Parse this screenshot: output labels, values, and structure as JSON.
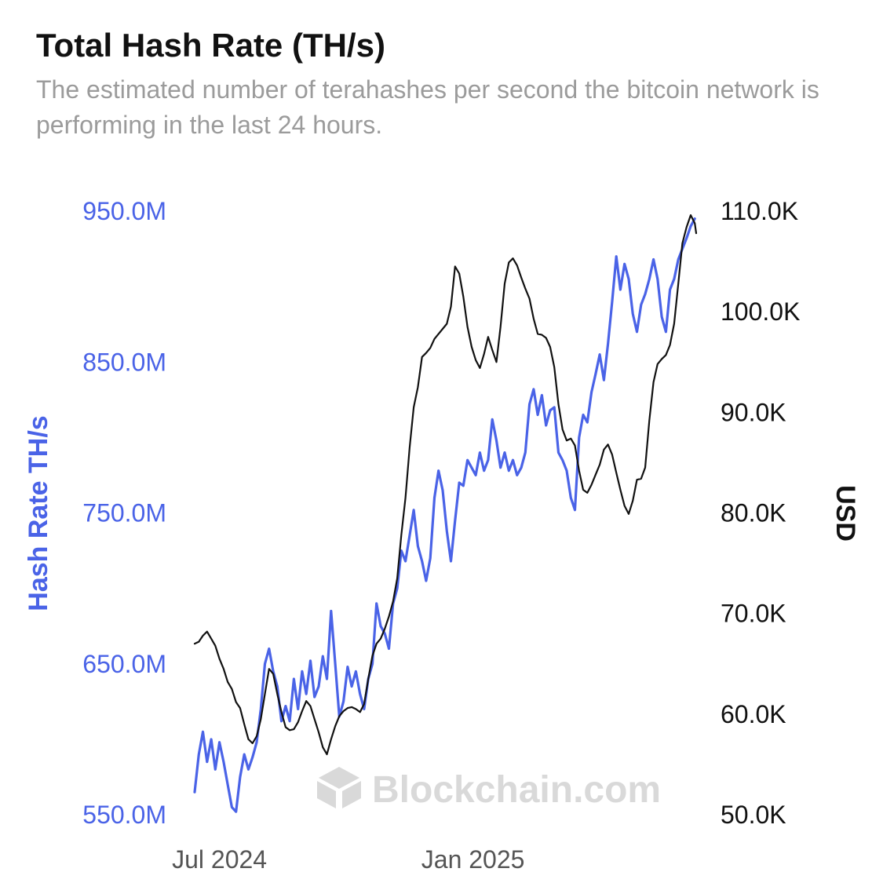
{
  "header": {
    "title": "Total Hash Rate (TH/s)",
    "subtitle": "The estimated number of terahashes per second the bitcoin network is performing in the last 24 hours."
  },
  "watermark": {
    "text": "Blockchain.com",
    "icon": "blockchain-cube-logo-icon",
    "color": "#d9d9d9"
  },
  "colors": {
    "hash_rate": "#4a63e7",
    "price": "#111111",
    "left_axis_text": "#4a63e7",
    "right_axis_text": "#111111",
    "x_axis_text": "#555555"
  },
  "chart_data": {
    "type": "line",
    "grid": false,
    "legend": "none",
    "x_axis": {
      "type": "time",
      "range": [
        "2024-06-13",
        "2025-06-12"
      ],
      "ticks": [
        {
          "label": "Jul 2024",
          "value": "2024-07-01"
        },
        {
          "label": "Jan 2025",
          "value": "2025-01-01"
        }
      ]
    },
    "y_left": {
      "label": "Hash Rate TH/s",
      "range": [
        550000000,
        950000000
      ],
      "ticks": [
        {
          "label": "550.0M",
          "value": 550000000
        },
        {
          "label": "650.0M",
          "value": 650000000
        },
        {
          "label": "750.0M",
          "value": 750000000
        },
        {
          "label": "850.0M",
          "value": 850000000
        },
        {
          "label": "950.0M",
          "value": 950000000
        }
      ]
    },
    "y_right": {
      "label": "USD",
      "range": [
        50000,
        110000
      ],
      "ticks": [
        {
          "label": "50.0K",
          "value": 50000
        },
        {
          "label": "60.0K",
          "value": 60000
        },
        {
          "label": "70.0K",
          "value": 70000
        },
        {
          "label": "80.0K",
          "value": 80000
        },
        {
          "label": "90.0K",
          "value": 90000
        },
        {
          "label": "100.0K",
          "value": 100000
        },
        {
          "label": "110.0K",
          "value": 110000
        }
      ]
    },
    "series": [
      {
        "axis": "left",
        "color": "#4a63e7",
        "points": [
          [
            "2024-06-13",
            565000000
          ],
          [
            "2024-06-16",
            590000000
          ],
          [
            "2024-06-19",
            605000000
          ],
          [
            "2024-06-22",
            585000000
          ],
          [
            "2024-06-25",
            600000000
          ],
          [
            "2024-06-28",
            580000000
          ],
          [
            "2024-07-01",
            598000000
          ],
          [
            "2024-07-04",
            585000000
          ],
          [
            "2024-07-07",
            570000000
          ],
          [
            "2024-07-10",
            555000000
          ],
          [
            "2024-07-13",
            552000000
          ],
          [
            "2024-07-16",
            575000000
          ],
          [
            "2024-07-19",
            590000000
          ],
          [
            "2024-07-22",
            580000000
          ],
          [
            "2024-07-25",
            588000000
          ],
          [
            "2024-07-28",
            598000000
          ],
          [
            "2024-07-31",
            620000000
          ],
          [
            "2024-08-03",
            650000000
          ],
          [
            "2024-08-06",
            660000000
          ],
          [
            "2024-08-09",
            645000000
          ],
          [
            "2024-08-12",
            635000000
          ],
          [
            "2024-08-15",
            612000000
          ],
          [
            "2024-08-18",
            622000000
          ],
          [
            "2024-08-21",
            612000000
          ],
          [
            "2024-08-24",
            640000000
          ],
          [
            "2024-08-27",
            620000000
          ],
          [
            "2024-08-30",
            645000000
          ],
          [
            "2024-09-02",
            630000000
          ],
          [
            "2024-09-05",
            652000000
          ],
          [
            "2024-09-08",
            628000000
          ],
          [
            "2024-09-11",
            635000000
          ],
          [
            "2024-09-14",
            655000000
          ],
          [
            "2024-09-17",
            640000000
          ],
          [
            "2024-09-20",
            685000000
          ],
          [
            "2024-09-23",
            650000000
          ],
          [
            "2024-09-26",
            615000000
          ],
          [
            "2024-09-29",
            625000000
          ],
          [
            "2024-10-02",
            648000000
          ],
          [
            "2024-10-05",
            635000000
          ],
          [
            "2024-10-08",
            645000000
          ],
          [
            "2024-10-11",
            630000000
          ],
          [
            "2024-10-14",
            620000000
          ],
          [
            "2024-10-17",
            640000000
          ],
          [
            "2024-10-20",
            650000000
          ],
          [
            "2024-10-23",
            690000000
          ],
          [
            "2024-10-26",
            675000000
          ],
          [
            "2024-10-29",
            670000000
          ],
          [
            "2024-11-01",
            660000000
          ],
          [
            "2024-11-04",
            690000000
          ],
          [
            "2024-11-07",
            700000000
          ],
          [
            "2024-11-10",
            725000000
          ],
          [
            "2024-11-13",
            718000000
          ],
          [
            "2024-11-16",
            735000000
          ],
          [
            "2024-11-19",
            752000000
          ],
          [
            "2024-11-22",
            728000000
          ],
          [
            "2024-11-25",
            718000000
          ],
          [
            "2024-11-28",
            705000000
          ],
          [
            "2024-12-01",
            720000000
          ],
          [
            "2024-12-04",
            760000000
          ],
          [
            "2024-12-07",
            778000000
          ],
          [
            "2024-12-10",
            765000000
          ],
          [
            "2024-12-13",
            738000000
          ],
          [
            "2024-12-16",
            718000000
          ],
          [
            "2024-12-19",
            745000000
          ],
          [
            "2024-12-22",
            770000000
          ],
          [
            "2024-12-25",
            768000000
          ],
          [
            "2024-12-28",
            785000000
          ],
          [
            "2024-12-31",
            780000000
          ],
          [
            "2025-01-03",
            775000000
          ],
          [
            "2025-01-06",
            790000000
          ],
          [
            "2025-01-09",
            778000000
          ],
          [
            "2025-01-12",
            785000000
          ],
          [
            "2025-01-15",
            812000000
          ],
          [
            "2025-01-18",
            798000000
          ],
          [
            "2025-01-21",
            780000000
          ],
          [
            "2025-01-24",
            790000000
          ],
          [
            "2025-01-27",
            778000000
          ],
          [
            "2025-01-30",
            785000000
          ],
          [
            "2025-02-02",
            775000000
          ],
          [
            "2025-02-05",
            780000000
          ],
          [
            "2025-02-08",
            790000000
          ],
          [
            "2025-02-11",
            822000000
          ],
          [
            "2025-02-14",
            832000000
          ],
          [
            "2025-02-17",
            815000000
          ],
          [
            "2025-02-20",
            828000000
          ],
          [
            "2025-02-23",
            808000000
          ],
          [
            "2025-02-26",
            818000000
          ],
          [
            "2025-03-01",
            820000000
          ],
          [
            "2025-03-04",
            790000000
          ],
          [
            "2025-03-07",
            785000000
          ],
          [
            "2025-03-10",
            778000000
          ],
          [
            "2025-03-13",
            760000000
          ],
          [
            "2025-03-16",
            752000000
          ],
          [
            "2025-03-19",
            800000000
          ],
          [
            "2025-03-22",
            815000000
          ],
          [
            "2025-03-25",
            810000000
          ],
          [
            "2025-03-28",
            830000000
          ],
          [
            "2025-03-31",
            842000000
          ],
          [
            "2025-04-03",
            855000000
          ],
          [
            "2025-04-06",
            838000000
          ],
          [
            "2025-04-09",
            862000000
          ],
          [
            "2025-04-12",
            890000000
          ],
          [
            "2025-04-15",
            920000000
          ],
          [
            "2025-04-18",
            898000000
          ],
          [
            "2025-04-21",
            915000000
          ],
          [
            "2025-04-24",
            905000000
          ],
          [
            "2025-04-27",
            882000000
          ],
          [
            "2025-04-30",
            870000000
          ],
          [
            "2025-05-03",
            888000000
          ],
          [
            "2025-05-06",
            895000000
          ],
          [
            "2025-05-09",
            905000000
          ],
          [
            "2025-05-12",
            918000000
          ],
          [
            "2025-05-15",
            905000000
          ],
          [
            "2025-05-18",
            880000000
          ],
          [
            "2025-05-21",
            870000000
          ],
          [
            "2025-05-24",
            898000000
          ],
          [
            "2025-05-27",
            905000000
          ],
          [
            "2025-05-30",
            918000000
          ],
          [
            "2025-06-02",
            925000000
          ],
          [
            "2025-06-05",
            932000000
          ],
          [
            "2025-06-08",
            940000000
          ],
          [
            "2025-06-11",
            945000000
          ]
        ]
      },
      {
        "axis": "right",
        "color": "#111111",
        "points": [
          [
            "2024-06-13",
            67000
          ],
          [
            "2024-06-16",
            67200
          ],
          [
            "2024-06-19",
            67800
          ],
          [
            "2024-06-22",
            68200
          ],
          [
            "2024-06-25",
            67500
          ],
          [
            "2024-06-28",
            66800
          ],
          [
            "2024-07-01",
            65500
          ],
          [
            "2024-07-04",
            64500
          ],
          [
            "2024-07-07",
            63200
          ],
          [
            "2024-07-10",
            62500
          ],
          [
            "2024-07-13",
            61200
          ],
          [
            "2024-07-16",
            60600
          ],
          [
            "2024-07-19",
            59000
          ],
          [
            "2024-07-22",
            57500
          ],
          [
            "2024-07-25",
            57100
          ],
          [
            "2024-07-28",
            57800
          ],
          [
            "2024-07-31",
            59500
          ],
          [
            "2024-08-03",
            62000
          ],
          [
            "2024-08-06",
            64500
          ],
          [
            "2024-08-09",
            64000
          ],
          [
            "2024-08-12",
            62000
          ],
          [
            "2024-08-15",
            60200
          ],
          [
            "2024-08-18",
            58700
          ],
          [
            "2024-08-21",
            58400
          ],
          [
            "2024-08-24",
            58500
          ],
          [
            "2024-08-27",
            59200
          ],
          [
            "2024-08-30",
            60300
          ],
          [
            "2024-09-02",
            61300
          ],
          [
            "2024-09-05",
            60800
          ],
          [
            "2024-09-08",
            59500
          ],
          [
            "2024-09-11",
            58200
          ],
          [
            "2024-09-14",
            56700
          ],
          [
            "2024-09-17",
            56000
          ],
          [
            "2024-09-20",
            57500
          ],
          [
            "2024-09-23",
            58800
          ],
          [
            "2024-09-26",
            59800
          ],
          [
            "2024-09-29",
            60300
          ],
          [
            "2024-10-02",
            60600
          ],
          [
            "2024-10-05",
            60700
          ],
          [
            "2024-10-08",
            60500
          ],
          [
            "2024-10-11",
            60200
          ],
          [
            "2024-10-14",
            61000
          ],
          [
            "2024-10-17",
            63500
          ],
          [
            "2024-10-20",
            65800
          ],
          [
            "2024-10-23",
            67000
          ],
          [
            "2024-10-26",
            67500
          ],
          [
            "2024-10-29",
            68500
          ],
          [
            "2024-11-01",
            69700
          ],
          [
            "2024-11-04",
            71200
          ],
          [
            "2024-11-07",
            73500
          ],
          [
            "2024-11-10",
            77800
          ],
          [
            "2024-11-13",
            81500
          ],
          [
            "2024-11-16",
            86500
          ],
          [
            "2024-11-19",
            90500
          ],
          [
            "2024-11-22",
            92500
          ],
          [
            "2024-11-25",
            95500
          ],
          [
            "2024-11-28",
            95900
          ],
          [
            "2024-12-01",
            96400
          ],
          [
            "2024-12-04",
            97300
          ],
          [
            "2024-12-07",
            97800
          ],
          [
            "2024-12-10",
            98300
          ],
          [
            "2024-12-13",
            98800
          ],
          [
            "2024-12-16",
            100500
          ],
          [
            "2024-12-19",
            104500
          ],
          [
            "2024-12-22",
            103800
          ],
          [
            "2024-12-25",
            101500
          ],
          [
            "2024-12-28",
            98500
          ],
          [
            "2024-12-31",
            96500
          ],
          [
            "2025-01-03",
            95200
          ],
          [
            "2025-01-06",
            94400
          ],
          [
            "2025-01-09",
            95800
          ],
          [
            "2025-01-12",
            97500
          ],
          [
            "2025-01-15",
            96200
          ],
          [
            "2025-01-18",
            95000
          ],
          [
            "2025-01-21",
            98500
          ],
          [
            "2025-01-24",
            102800
          ],
          [
            "2025-01-27",
            104900
          ],
          [
            "2025-01-30",
            105300
          ],
          [
            "2025-02-02",
            104600
          ],
          [
            "2025-02-05",
            103400
          ],
          [
            "2025-02-08",
            102300
          ],
          [
            "2025-02-11",
            101300
          ],
          [
            "2025-02-14",
            99300
          ],
          [
            "2025-02-17",
            97800
          ],
          [
            "2025-02-20",
            97700
          ],
          [
            "2025-02-23",
            97400
          ],
          [
            "2025-02-26",
            96500
          ],
          [
            "2025-03-01",
            94500
          ],
          [
            "2025-03-04",
            90800
          ],
          [
            "2025-03-07",
            88300
          ],
          [
            "2025-03-10",
            87200
          ],
          [
            "2025-03-13",
            87400
          ],
          [
            "2025-03-16",
            86700
          ],
          [
            "2025-03-19",
            84200
          ],
          [
            "2025-03-22",
            82300
          ],
          [
            "2025-03-25",
            82000
          ],
          [
            "2025-03-28",
            82800
          ],
          [
            "2025-03-31",
            83800
          ],
          [
            "2025-04-03",
            84800
          ],
          [
            "2025-04-06",
            86300
          ],
          [
            "2025-04-09",
            86800
          ],
          [
            "2025-04-12",
            85800
          ],
          [
            "2025-04-15",
            84000
          ],
          [
            "2025-04-18",
            82300
          ],
          [
            "2025-04-21",
            80700
          ],
          [
            "2025-04-24",
            79900
          ],
          [
            "2025-04-27",
            81200
          ],
          [
            "2025-04-30",
            83300
          ],
          [
            "2025-05-03",
            83400
          ],
          [
            "2025-05-06",
            84500
          ],
          [
            "2025-05-09",
            89200
          ],
          [
            "2025-05-12",
            93000
          ],
          [
            "2025-05-15",
            94800
          ],
          [
            "2025-05-18",
            95300
          ],
          [
            "2025-05-21",
            95700
          ],
          [
            "2025-05-24",
            96700
          ],
          [
            "2025-05-27",
            98800
          ],
          [
            "2025-05-30",
            102800
          ],
          [
            "2025-06-02",
            106800
          ],
          [
            "2025-06-05",
            108400
          ],
          [
            "2025-06-08",
            109600
          ],
          [
            "2025-06-11",
            108800
          ],
          [
            "2025-06-12",
            107800
          ]
        ]
      }
    ]
  }
}
